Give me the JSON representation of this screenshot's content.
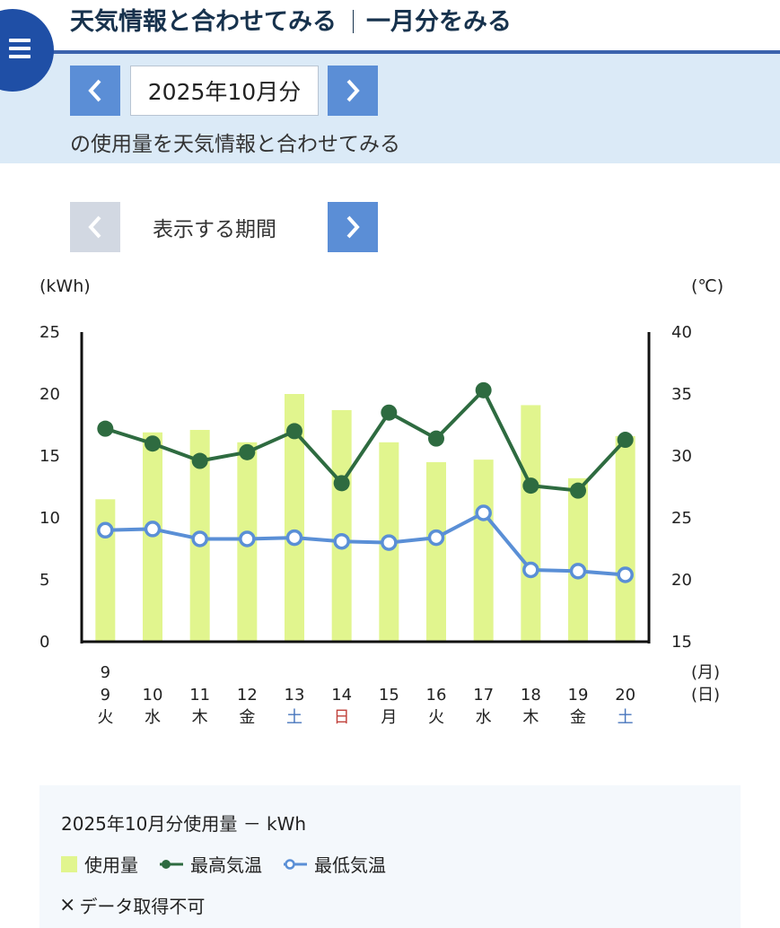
{
  "header": {
    "title_left": "天気情報と合わせてみる",
    "title_right": "一月分をみる"
  },
  "menu": {
    "icon": "menu-icon"
  },
  "month_selector": {
    "prev_label": "<",
    "next_label": ">",
    "value": "2025年10月分",
    "caption": "の使用量を天気情報と合わせてみる"
  },
  "period_selector": {
    "prev_label": "<",
    "next_label": ">",
    "label": "表示する期間"
  },
  "chart_data": {
    "type": "bar",
    "left_unit": "(kWh)",
    "right_unit": "(℃)",
    "y_left_ticks": [
      "25",
      "20",
      "15",
      "10",
      "5",
      "0"
    ],
    "y_right_ticks": [
      "40",
      "35",
      "30",
      "25",
      "20",
      "15"
    ],
    "ylim_left": [
      0,
      25
    ],
    "ylim_right": [
      15,
      40
    ],
    "month_row": [
      "9",
      "",
      "",
      "",
      "",
      "",
      "",
      "",
      "",
      "",
      "",
      ""
    ],
    "month_axis_label": "(月)",
    "day_axis_label": "(日)",
    "days": [
      "9",
      "10",
      "11",
      "12",
      "13",
      "14",
      "15",
      "16",
      "17",
      "18",
      "19",
      "20"
    ],
    "weekdays": [
      "火",
      "水",
      "木",
      "金",
      "土",
      "日",
      "月",
      "火",
      "水",
      "木",
      "金",
      "土"
    ],
    "weekday_colors": [
      "#222222",
      "#222222",
      "#222222",
      "#222222",
      "#4876bd",
      "#c0403a",
      "#222222",
      "#222222",
      "#222222",
      "#222222",
      "#222222",
      "#4876bd"
    ],
    "series": [
      {
        "name": "使用量",
        "kind": "bar",
        "color": "#e1f58e",
        "values": [
          11.5,
          16.9,
          17.1,
          16.1,
          20.0,
          18.7,
          16.1,
          14.5,
          14.7,
          19.1,
          13.2,
          16.6
        ]
      },
      {
        "name": "最高気温",
        "kind": "line",
        "color": "#2e6b40",
        "values": [
          32.2,
          31.0,
          29.6,
          30.3,
          32.0,
          27.8,
          33.5,
          31.4,
          35.3,
          27.6,
          27.2,
          31.3
        ]
      },
      {
        "name": "最低気温",
        "kind": "line",
        "color": "#5a8fd6",
        "values": [
          24.0,
          24.1,
          23.3,
          23.3,
          23.4,
          23.1,
          23.0,
          23.4,
          25.4,
          20.8,
          20.7,
          20.4
        ]
      }
    ]
  },
  "legend": {
    "title": "2025年10月分使用量 － kWh",
    "usage": "使用量",
    "max_temp": "最高気温",
    "min_temp": "最低気温",
    "no_data_mark": "×",
    "no_data": "データ取得不可"
  }
}
